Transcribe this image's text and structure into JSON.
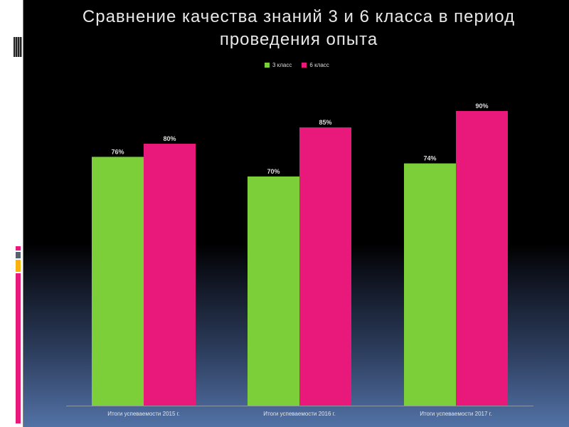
{
  "title": "Сравнение качества знаний 3 и 6 класса в период проведения опыта",
  "colors": {
    "series1": "#7dcf3a",
    "series2": "#e8197a"
  },
  "chart_data": {
    "type": "bar",
    "title": "Сравнение качества знаний 3 и 6 класса в период проведения опыта",
    "categories": [
      "Итоги успеваемости 2015 г.",
      "Итоги успеваемости 2016 г.",
      "Итоги успеваемости 2017 г."
    ],
    "series": [
      {
        "name": "3 класс",
        "values": [
          76,
          70,
          74
        ],
        "labels": [
          "76%",
          "70%",
          "74%"
        ]
      },
      {
        "name": "6 класс",
        "values": [
          80,
          85,
          90
        ],
        "labels": [
          "80%",
          "85%",
          "90%"
        ]
      }
    ],
    "ylim": [
      0,
      100
    ],
    "grid": false,
    "legend": "top-center",
    "xlabel": "",
    "ylabel": ""
  }
}
